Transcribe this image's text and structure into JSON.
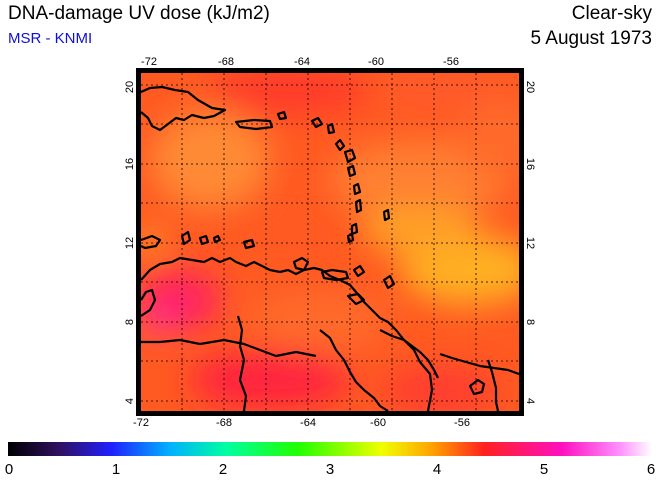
{
  "header": {
    "title": "DNA-damage UV dose (kJ/m2)",
    "source": "MSR - KNMI",
    "condition": "Clear-sky",
    "date": "5 August 1973"
  },
  "map": {
    "lon_range": [
      -73,
      -53
    ],
    "lat_range": [
      3.5,
      20.5
    ],
    "lon_ticks": [
      "-72",
      "-68",
      "-64",
      "-60",
      "-56"
    ],
    "lat_ticks": [
      "4",
      "8",
      "12",
      "16",
      "20"
    ],
    "grid": "dotted lines every 2 degrees",
    "region": "Caribbean Sea, Lesser Antilles and northern South America"
  },
  "colorbar": {
    "labels": [
      "0",
      "1",
      "2",
      "3",
      "4",
      "5",
      "6"
    ],
    "range": [
      0,
      6
    ],
    "colors": [
      "#000000",
      "#3010a0",
      "#0040ff",
      "#00e0ff",
      "#00ff60",
      "#e0ff00",
      "#ffa000",
      "#ff2020",
      "#ff10d0",
      "#ffffff"
    ]
  },
  "colors": {
    "title": "#000000",
    "source": "#1010d0",
    "coast": "#000000"
  }
}
